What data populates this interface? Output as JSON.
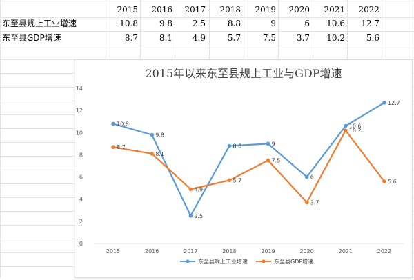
{
  "sheet": {
    "headers": [
      "2015",
      "2016",
      "2017",
      "2018",
      "2019",
      "2020",
      "2021",
      "2022"
    ],
    "rows": [
      {
        "label": "东至县规上工业增速",
        "values": [
          "10.8",
          "9.8",
          "2.5",
          "8.8",
          "9",
          "6",
          "10.6",
          "12.7"
        ]
      },
      {
        "label": "东至县GDP增速",
        "values": [
          "8.7",
          "8.1",
          "4.9",
          "5.7",
          "7.5",
          "3.7",
          "10.2",
          "5.6"
        ]
      }
    ]
  },
  "chart_data": {
    "type": "line",
    "title": "2015年以来东至县规上工业与GDP增速",
    "categories": [
      "2015",
      "2016",
      "2017",
      "2018",
      "2019",
      "2020",
      "2021",
      "2022"
    ],
    "series": [
      {
        "name": "东至县规上工业增速",
        "color": "#5b9bd5",
        "values": [
          10.8,
          9.8,
          2.5,
          8.8,
          9,
          6,
          10.6,
          12.7
        ],
        "labels": [
          "10.8",
          "9.8",
          "2.5",
          "8.8",
          "9",
          "6",
          "10.6",
          "12.7"
        ]
      },
      {
        "name": "东至县GDP增速",
        "color": "#ed7d31",
        "values": [
          8.7,
          8.1,
          4.9,
          5.7,
          7.5,
          3.7,
          10.2,
          5.6
        ],
        "labels": [
          "8.7",
          "8.1",
          "4.9",
          "5.7",
          "7.5",
          "3.7",
          "10.2",
          "5.6"
        ]
      }
    ],
    "ylim": [
      0,
      14
    ],
    "yticks": [
      0,
      2,
      4,
      6,
      8,
      10,
      12,
      14
    ],
    "ytick_labels": [
      "0",
      "2",
      "4",
      "6",
      "8",
      "10",
      "12",
      "14"
    ],
    "grid": false,
    "legend_position": "bottom"
  }
}
